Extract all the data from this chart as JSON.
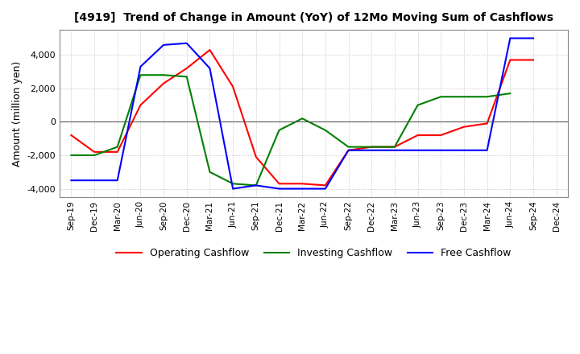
{
  "title": "[4919]  Trend of Change in Amount (YoY) of 12Mo Moving Sum of Cashflows",
  "ylabel": "Amount (million yen)",
  "ylim": [
    -4500,
    5500
  ],
  "yticks": [
    -4000,
    -2000,
    0,
    2000,
    4000
  ],
  "x_labels": [
    "Sep-19",
    "Dec-19",
    "Mar-20",
    "Jun-20",
    "Sep-20",
    "Dec-20",
    "Mar-21",
    "Jun-21",
    "Sep-21",
    "Dec-21",
    "Mar-22",
    "Jun-22",
    "Sep-22",
    "Dec-22",
    "Mar-23",
    "Jun-23",
    "Sep-23",
    "Dec-23",
    "Mar-24",
    "Jun-24",
    "Sep-24",
    "Dec-24"
  ],
  "operating": [
    -800,
    -1800,
    -1800,
    1000,
    2300,
    3200,
    4300,
    2100,
    -2100,
    -3700,
    -3700,
    -3800,
    -1700,
    -1500,
    -1500,
    -800,
    -800,
    -300,
    -100,
    3700,
    3700,
    null
  ],
  "investing": [
    -2000,
    -2000,
    -1500,
    2800,
    2800,
    2700,
    -3000,
    -3700,
    -3800,
    -500,
    200,
    -500,
    -1500,
    -1500,
    -1500,
    1000,
    1500,
    1500,
    1500,
    1700,
    null,
    null
  ],
  "free": [
    -3500,
    -3500,
    -3500,
    3300,
    4600,
    4700,
    3200,
    -4000,
    -3800,
    -4000,
    -4000,
    -4000,
    -1700,
    -1700,
    -1700,
    -1700,
    -1700,
    -1700,
    -1700,
    5000,
    5000,
    null
  ],
  "operating_color": "#ff0000",
  "investing_color": "#008000",
  "free_color": "#0000ff",
  "background_color": "#ffffff",
  "grid_color": "#aaaaaa"
}
